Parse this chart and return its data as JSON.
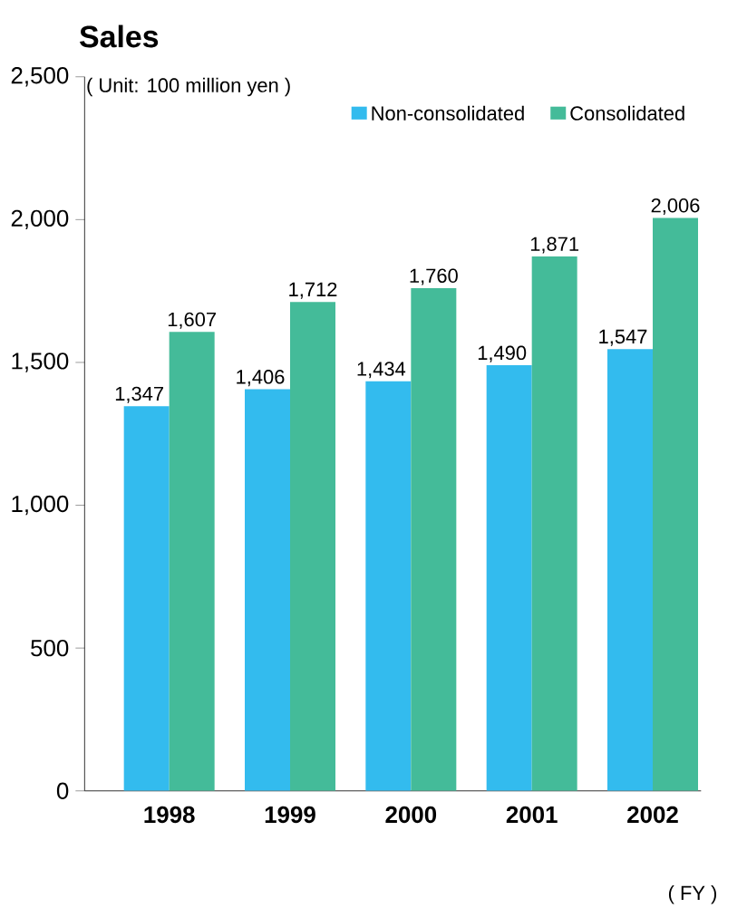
{
  "chart_data": {
    "type": "bar",
    "title": "Sales",
    "categories": [
      "1998",
      "1999",
      "2000",
      "2001",
      "2002"
    ],
    "series": [
      {
        "name": "Non-consolidated",
        "color": "#33bbee",
        "values": [
          1347,
          1406,
          1434,
          1490,
          1547
        ],
        "value_labels": [
          "1,347",
          "1,406",
          "1,434",
          "1,490",
          "1,547"
        ]
      },
      {
        "name": "Consolidated",
        "color": "#44bb99",
        "values": [
          1607,
          1712,
          1760,
          1871,
          2006
        ],
        "value_labels": [
          "1,607",
          "1,712",
          "1,760",
          "1,871",
          "2,006"
        ]
      }
    ],
    "ylim": [
      0,
      2500
    ],
    "yticks": [
      0,
      500,
      {
        "value": 1000,
        "label": "1,000"
      },
      {
        "value": 1500,
        "label": "1,500"
      },
      {
        "value": 2000,
        "label": "2,000"
      },
      {
        "value": 2500,
        "label": "2,500"
      }
    ],
    "legend": "top right",
    "annotations": [
      "( Unit: 100 million yen )",
      "( FY )"
    ]
  }
}
